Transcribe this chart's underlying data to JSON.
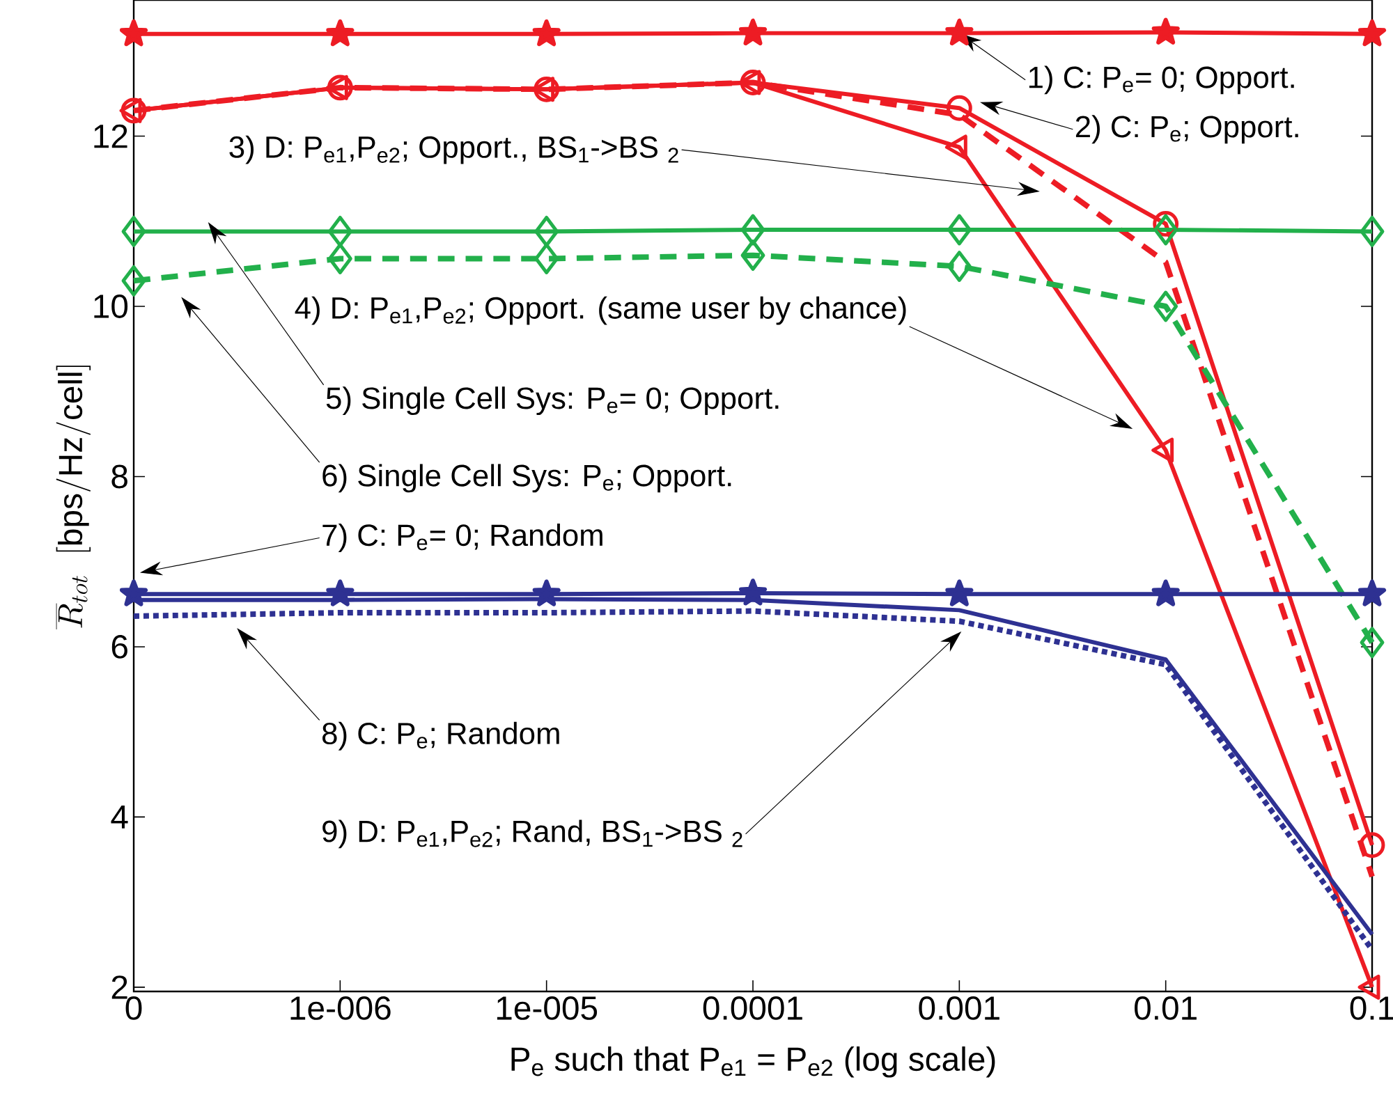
{
  "chart_data": {
    "type": "line",
    "xlabel": "P$_{e}$ such that P$_{e1}$ = P$_{e2}$ (log scale)",
    "ylabel": "\\overline{R}_{tot}\\;\\;[\\mathrm{bps/Hz/cell}]",
    "categories": [
      "0",
      "1e-006",
      "1e-005",
      "0.0001",
      "0.001",
      "0.01",
      "0.1"
    ],
    "ylim": [
      1.95,
      13.6
    ],
    "yticks": [
      2,
      4,
      6,
      8,
      10,
      12
    ],
    "grid": false,
    "series": [
      {
        "color": "#ed1c24",
        "marker": "star",
        "line_style": "solid",
        "values": [
          13.2,
          13.2,
          13.2,
          13.21,
          13.21,
          13.22,
          13.2
        ]
      },
      {
        "color": "#ed1c24",
        "marker": "circle",
        "line_style": "solid",
        "values": [
          12.3,
          12.57,
          12.55,
          12.63,
          12.33,
          10.97,
          3.67
        ]
      },
      {
        "color": "#ed1c24",
        "marker": "triangle",
        "line_style": "solid",
        "values": [
          12.3,
          12.57,
          12.55,
          12.63,
          11.87,
          8.31,
          2.0
        ]
      },
      {
        "color": "#ed1c24",
        "marker": "none",
        "line_style": "dashed",
        "values": [
          12.3,
          12.57,
          12.55,
          12.63,
          12.25,
          10.52,
          3.3
        ]
      },
      {
        "color": "#22b04b",
        "marker": "diamond",
        "line_style": "solid",
        "values": [
          10.88,
          10.88,
          10.88,
          10.9,
          10.9,
          10.9,
          10.88
        ]
      },
      {
        "color": "#22b04b",
        "marker": "diamond",
        "line_style": "dashed",
        "values": [
          10.3,
          10.56,
          10.56,
          10.6,
          10.47,
          10.0,
          6.05
        ]
      },
      {
        "color": "#2e3192",
        "marker": "star",
        "line_style": "solid",
        "values": [
          6.62,
          6.62,
          6.62,
          6.63,
          6.62,
          6.62,
          6.62
        ]
      },
      {
        "color": "#2e3192",
        "marker": "none",
        "line_style": "solid",
        "values": [
          6.55,
          6.55,
          6.56,
          6.55,
          6.43,
          5.85,
          2.62
        ]
      },
      {
        "color": "#2e3192",
        "marker": "none",
        "line_style": "dotted",
        "values": [
          6.36,
          6.4,
          6.4,
          6.42,
          6.3,
          5.79,
          2.44
        ]
      }
    ],
    "annotations": [
      {
        "text": "1) C: P$_{e}$= 0; Opport.",
        "x": "0.001",
        "y": 13.21
      },
      "2) C: P$_{e}$; Opport.",
      "3) D: P$_{e1}$,P$_{e2}$; Opport., BS$_{1}$->BS $_{2}$",
      "4) D: P$_{e1}$,P$_{e2}$; Opport. (same user by chance)",
      "5) Single Cell Sys: P$_{e}$= 0; Opport.",
      "6) Single Cell Sys: P$_{e}$; Opport.",
      "7) C: P$_{e}$= 0; Random",
      "8) C: P$_{e}$; Random",
      "9) D: P$_{e1}$,P$_{e2}$; Rand, BS$_{1}$->BS $_{2}$"
    ]
  }
}
